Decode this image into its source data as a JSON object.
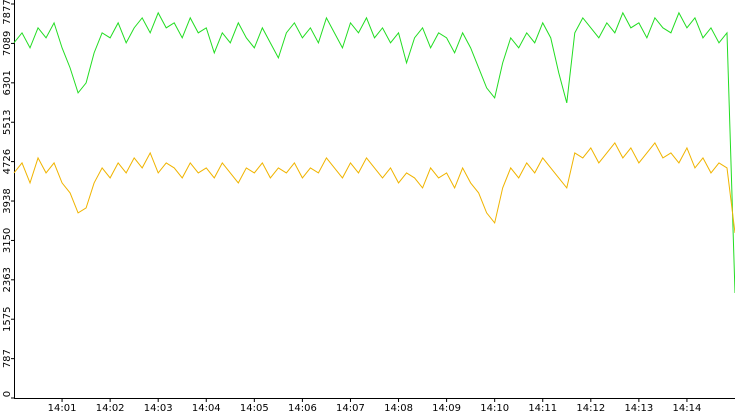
{
  "chart_data": {
    "type": "line",
    "categories": [
      null,
      null,
      null,
      null,
      null,
      null,
      "14:01",
      null,
      null,
      null,
      null,
      null,
      "14:02",
      null,
      null,
      null,
      null,
      null,
      "14:03",
      null,
      null,
      null,
      null,
      null,
      "14:04",
      null,
      null,
      null,
      null,
      null,
      "14:05",
      null,
      null,
      null,
      null,
      null,
      "14:06",
      null,
      null,
      null,
      null,
      null,
      "14:07",
      null,
      null,
      null,
      null,
      null,
      "14:08",
      null,
      null,
      null,
      null,
      null,
      "14:09",
      null,
      null,
      null,
      null,
      null,
      "14:10",
      null,
      null,
      null,
      null,
      null,
      "14:11",
      null,
      null,
      null,
      null,
      null,
      "14:12",
      null,
      null,
      null,
      null,
      null,
      "14:13",
      null,
      null,
      null,
      null,
      null,
      "14:14",
      null,
      null,
      null,
      null,
      null,
      null
    ],
    "series": [
      {
        "color": "#22dd22",
        "values": [
          7100,
          7300,
          7000,
          7400,
          7200,
          7500,
          7000,
          6600,
          6100,
          6300,
          6900,
          7300,
          7200,
          7500,
          7100,
          7400,
          7600,
          7300,
          7700,
          7400,
          7500,
          7200,
          7600,
          7300,
          7400,
          6900,
          7300,
          7100,
          7500,
          7200,
          7000,
          7400,
          7100,
          6800,
          7300,
          7500,
          7200,
          7400,
          7100,
          7600,
          7300,
          7000,
          7500,
          7300,
          7600,
          7200,
          7400,
          7100,
          7300,
          6700,
          7200,
          7400,
          7000,
          7300,
          7200,
          6900,
          7300,
          7000,
          6600,
          6200,
          6000,
          6700,
          7200,
          7000,
          7300,
          7100,
          7500,
          7200,
          6500,
          5900,
          7300,
          7600,
          7400,
          7200,
          7500,
          7300,
          7700,
          7400,
          7500,
          7200,
          7600,
          7400,
          7300,
          7700,
          7400,
          7600,
          7200,
          7400,
          7100,
          7300,
          2100
        ]
      },
      {
        "color": "#f0b400",
        "values": [
          4500,
          4700,
          4300,
          4800,
          4500,
          4700,
          4300,
          4100,
          3700,
          3800,
          4300,
          4600,
          4400,
          4700,
          4500,
          4800,
          4600,
          4900,
          4500,
          4700,
          4600,
          4400,
          4700,
          4500,
          4600,
          4400,
          4700,
          4500,
          4300,
          4600,
          4500,
          4700,
          4400,
          4600,
          4500,
          4700,
          4400,
          4600,
          4500,
          4800,
          4600,
          4400,
          4700,
          4500,
          4800,
          4600,
          4400,
          4600,
          4300,
          4500,
          4400,
          4200,
          4600,
          4400,
          4500,
          4200,
          4600,
          4300,
          4100,
          3700,
          3500,
          4200,
          4600,
          4400,
          4700,
          4500,
          4800,
          4600,
          4400,
          4200,
          4900,
          4800,
          5000,
          4700,
          4900,
          5100,
          4800,
          5000,
          4700,
          4900,
          5100,
          4800,
          4900,
          4700,
          5000,
          4600,
          4800,
          4500,
          4700,
          4600,
          3300
        ]
      }
    ],
    "ylim": [
      0,
      7877
    ],
    "yticks": [
      0,
      787,
      1575,
      2363,
      3150,
      3938,
      4726,
      5513,
      6301,
      7089,
      7877
    ]
  }
}
